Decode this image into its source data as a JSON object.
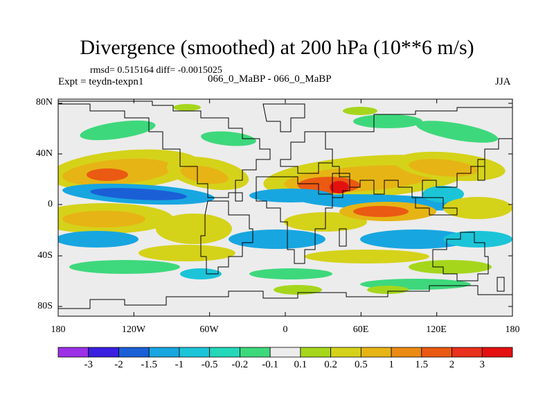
{
  "title": "Divergence (smoothed) at 200 hPa (10**6 m/s)",
  "stats": "rmsd= 0.515164 diff= -0.0015025",
  "experiment": "Expt = teydn-texpn1",
  "comparison": "066_0_MaBP - 066_0_MaBP",
  "season": "JJA",
  "axes": {
    "y_ticks": [
      "80N",
      "40N",
      "0",
      "40S",
      "80S"
    ],
    "x_ticks": [
      "180",
      "120W",
      "60W",
      "0",
      "60E",
      "120E",
      "180"
    ]
  },
  "colorbar": {
    "labels": [
      "-3",
      "-2",
      "-1.5",
      "-1",
      "-0.5",
      "-0.2",
      "-0.1",
      "0.1",
      "0.2",
      "0.5",
      "1",
      "1.5",
      "2",
      "3"
    ],
    "colors": [
      "#9b30e6",
      "#3b1fe0",
      "#1b5fd6",
      "#18a6e0",
      "#1cc4d8",
      "#23d7b8",
      "#3ed87c",
      "#ececec",
      "#a6d61c",
      "#d5d21a",
      "#e6b415",
      "#ea8a12",
      "#ea5a12",
      "#e8301a",
      "#e41010"
    ]
  },
  "field_colors": {
    "background": "#ececec",
    "strong_negative": "#1b5fd6",
    "negative": "#18a6e0",
    "weak_negative": "#1cc4d8",
    "slight_negative": "#3ed87c",
    "slight_positive": "#a6d61c",
    "positive": "#d5d21a",
    "strong_positive": "#e6b415",
    "very_positive": "#ea5a12",
    "max_positive": "#e41010"
  }
}
